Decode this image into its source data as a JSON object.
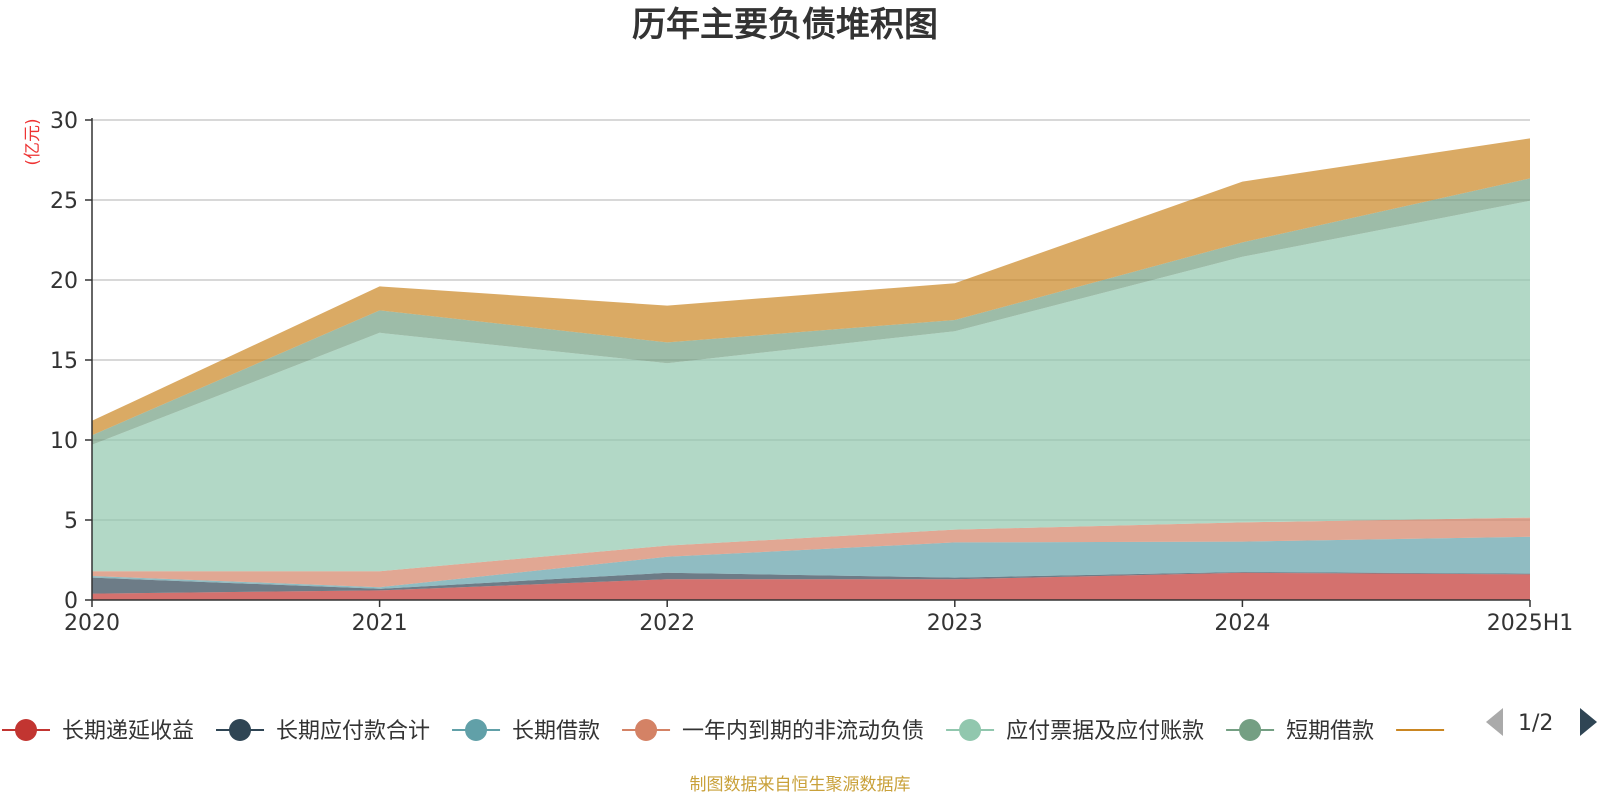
{
  "chart_data": {
    "type": "area",
    "title": "历年主要负债堆积图",
    "unit_label": "(亿元)",
    "x": [
      "2020",
      "2021",
      "2022",
      "2023",
      "2024",
      "2025H1"
    ],
    "ylim": [
      0,
      30
    ],
    "yticks": [
      0,
      5,
      10,
      15,
      20,
      25,
      30
    ],
    "grid": true,
    "stacked": true,
    "series": [
      {
        "name": "长期递延收益",
        "color": "#c23531",
        "values": [
          0.4,
          0.6,
          1.3,
          1.3,
          1.7,
          1.6
        ]
      },
      {
        "name": "长期应付款合计",
        "color": "#2f4554",
        "values": [
          1.0,
          0.1,
          0.4,
          0.1,
          0.05,
          0.05
        ]
      },
      {
        "name": "长期借款",
        "color": "#61a0a8",
        "values": [
          0.1,
          0.1,
          1.0,
          2.2,
          1.9,
          2.3
        ]
      },
      {
        "name": "一年内到期的非流动负债",
        "color": "#d48265",
        "values": [
          0.3,
          1.0,
          0.7,
          0.8,
          1.2,
          1.2
        ]
      },
      {
        "name": "应付票据及应付账款",
        "color": "#91c7ae",
        "values": [
          7.9,
          14.9,
          11.4,
          12.4,
          16.6,
          19.8
        ]
      },
      {
        "name": "短期借款",
        "color": "#749f83",
        "values": [
          0.6,
          1.4,
          1.3,
          0.7,
          0.9,
          1.4
        ]
      },
      {
        "name": "",
        "color": "#ca8622",
        "values": [
          0.9,
          1.5,
          2.3,
          2.3,
          3.8,
          2.5
        ]
      }
    ],
    "legend_placement": "bottom",
    "legend_page": "1/2",
    "source": "制图数据来自恒生聚源数据库"
  }
}
